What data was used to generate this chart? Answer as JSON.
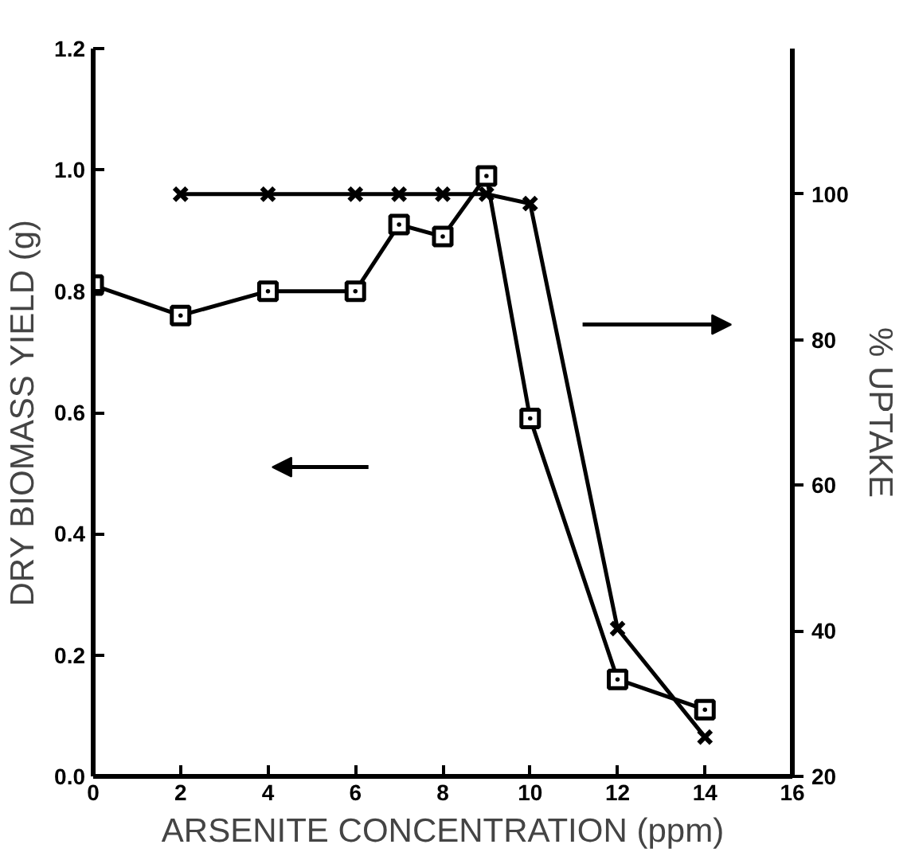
{
  "chart_data": {
    "type": "line",
    "xlabel": "ARSENITE CONCENTRATION (ppm)",
    "ylabel": "DRY BIOMASS YIELD (g)",
    "y2label": "% UPTAKE",
    "xlim": [
      0,
      16
    ],
    "xticks": [
      0,
      2,
      4,
      6,
      8,
      10,
      12,
      14,
      16
    ],
    "ylim": [
      0,
      1.2
    ],
    "yticks": [
      {
        "value": 0,
        "label": "0.0"
      },
      0.2,
      0.4,
      0.6,
      0.8,
      {
        "value": 1,
        "label": "1.0"
      },
      1.2
    ],
    "y2lim": [
      20,
      120
    ],
    "y2ticks": [
      20,
      40,
      60,
      80,
      100
    ],
    "series": [
      {
        "color": "#000000",
        "marker": "square",
        "x": [
          0,
          2,
          4,
          6,
          7,
          8,
          9,
          10,
          12,
          14
        ],
        "values": [
          0.81,
          0.76,
          0.8,
          0.8,
          0.91,
          0.89,
          0.99,
          0.59,
          0.16,
          0.11
        ]
      },
      {
        "color": "#000000",
        "marker": "cross",
        "axis": "y2",
        "x": [
          2,
          4,
          6,
          7,
          8,
          9,
          10,
          12,
          14
        ],
        "values": [
          100,
          100,
          100,
          100,
          100,
          100,
          98.7,
          40.3,
          25.4
        ]
      }
    ],
    "grid": false
  }
}
